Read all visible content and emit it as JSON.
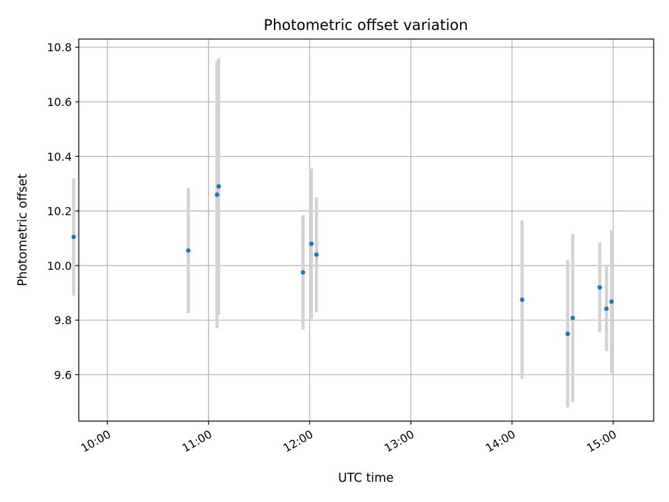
{
  "chart_data": {
    "type": "scatter",
    "title": "Photometric offset variation",
    "xlabel": "UTC time",
    "ylabel": "Photometric offset",
    "x_unit": "UTC time (HH:MM)",
    "xlim": [
      "09:43",
      "15:24"
    ],
    "ylim": [
      9.43,
      10.83
    ],
    "grid": true,
    "x_ticks": [
      "10:00",
      "11:00",
      "12:00",
      "13:00",
      "14:00",
      "15:00"
    ],
    "y_ticks": [
      9.6,
      9.8,
      10.0,
      10.2,
      10.4,
      10.6,
      10.8
    ],
    "y_tick_labels": [
      "9.6",
      "9.8",
      "10.0",
      "10.2",
      "10.4",
      "10.6",
      "10.8"
    ],
    "colors": {
      "point": "#1f77b4",
      "errorbar": "#d3d3d3",
      "grid": "#b0b0b0"
    },
    "points": [
      {
        "x": "09:40",
        "y": 10.105,
        "err": 0.215
      },
      {
        "x": "10:48",
        "y": 10.055,
        "err": 0.23
      },
      {
        "x": "11:05",
        "y": 10.26,
        "err": 0.49
      },
      {
        "x": "11:06",
        "y": 10.29,
        "err": 0.47
      },
      {
        "x": "11:56",
        "y": 9.975,
        "err": 0.21
      },
      {
        "x": "12:01",
        "y": 10.08,
        "err": 0.275
      },
      {
        "x": "12:04",
        "y": 10.04,
        "err": 0.21
      },
      {
        "x": "14:06",
        "y": 9.875,
        "err": 0.29
      },
      {
        "x": "14:33",
        "y": 9.75,
        "err": 0.27
      },
      {
        "x": "14:36",
        "y": 9.808,
        "err": 0.308
      },
      {
        "x": "14:52",
        "y": 9.92,
        "err": 0.165
      },
      {
        "x": "14:56",
        "y": 9.842,
        "err": 0.155
      },
      {
        "x": "14:59",
        "y": 9.868,
        "err": 0.262
      }
    ]
  }
}
